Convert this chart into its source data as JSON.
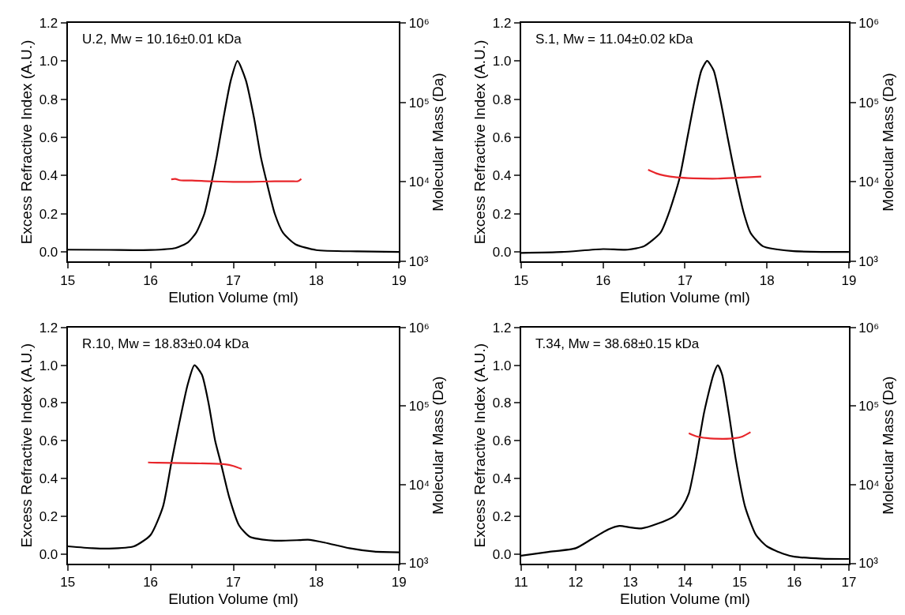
{
  "chart_data": [
    {
      "type": "line",
      "title": "U.2, Mw = 10.16±0.01 kDa",
      "xlabel": "Elution Volume (ml)",
      "ylabel": "Excess Refractive Index (A.U.)",
      "y2label": "Molecular Mass (Da)",
      "log": "y2",
      "xlim": [
        15,
        19
      ],
      "xticks": [
        15,
        16,
        17,
        18,
        19
      ],
      "ylim": [
        -0.05,
        1.2
      ],
      "yticks": [
        {
          "value": 0,
          "label": "0.0"
        },
        {
          "value": 0.2,
          "label": "0.2"
        },
        {
          "value": 0.4,
          "label": "0.4"
        },
        {
          "value": 0.6,
          "label": "0.6"
        },
        {
          "value": 0.8,
          "label": "0.8"
        },
        {
          "value": 1,
          "label": "1.0"
        },
        {
          "value": 1.2,
          "label": "1.2"
        }
      ],
      "y2lim": [
        1000,
        1000000
      ],
      "y2ticks": [
        {
          "value": 1000,
          "label": "10³"
        },
        {
          "value": 10000,
          "label": "10⁴"
        },
        {
          "value": 100000,
          "label": "10⁵"
        },
        {
          "value": 1000000,
          "label": "10⁶"
        }
      ],
      "series": [
        {
          "color": "#000000",
          "x": [
            15,
            15.5,
            16,
            16.3,
            16.45,
            16.55,
            16.65,
            16.73,
            16.8,
            16.88,
            16.97,
            17.05,
            17.15,
            17.25,
            17.33,
            17.4,
            17.5,
            17.6,
            17.75,
            18,
            18.5,
            19
          ],
          "values": [
            0.012,
            0.011,
            0.01,
            0.02,
            0.05,
            0.1,
            0.2,
            0.35,
            0.5,
            0.7,
            0.9,
            1.0,
            0.9,
            0.7,
            0.5,
            0.37,
            0.2,
            0.1,
            0.04,
            0.01,
            0.003,
            0.0
          ]
        },
        {
          "color": "#e8262b",
          "axis": "y2",
          "x": [
            16.25,
            16.3,
            16.35,
            16.4,
            16.5,
            16.7,
            17.0,
            17.2,
            17.5,
            17.7,
            17.78,
            17.82
          ],
          "values": [
            10800,
            10900,
            10500,
            10400,
            10400,
            10200,
            10000,
            10000,
            10200,
            10200,
            10200,
            10900
          ]
        }
      ]
    },
    {
      "type": "line",
      "title": "S.1, Mw = 11.04±0.02 kDa",
      "xlabel": "Elution Volume (ml)",
      "ylabel": "Excess Refractive Index (A.U.)",
      "y2label": "Molecular Mass (Da)",
      "log": "y2",
      "xlim": [
        15,
        19
      ],
      "xticks": [
        15,
        16,
        17,
        18,
        19
      ],
      "ylim": [
        -0.05,
        1.2
      ],
      "yticks": [
        {
          "value": 0,
          "label": "0.0"
        },
        {
          "value": 0.2,
          "label": "0.2"
        },
        {
          "value": 0.4,
          "label": "0.4"
        },
        {
          "value": 0.6,
          "label": "0.6"
        },
        {
          "value": 0.8,
          "label": "0.8"
        },
        {
          "value": 1,
          "label": "1.0"
        },
        {
          "value": 1.2,
          "label": "1.2"
        }
      ],
      "y2lim": [
        1000,
        1000000
      ],
      "y2ticks": [
        {
          "value": 1000,
          "label": "10³"
        },
        {
          "value": 10000,
          "label": "10⁴"
        },
        {
          "value": 100000,
          "label": "10⁵"
        },
        {
          "value": 1000000,
          "label": "10⁶"
        }
      ],
      "series": [
        {
          "color": "#000000",
          "x": [
            15,
            15.5,
            16,
            16.3,
            16.5,
            16.7,
            16.8,
            16.93,
            17.03,
            17.12,
            17.2,
            17.27,
            17.35,
            17.43,
            17.52,
            17.62,
            17.72,
            17.8,
            17.95,
            18.3,
            19
          ],
          "values": [
            -0.005,
            0.0,
            0.015,
            0.012,
            0.03,
            0.1,
            0.2,
            0.38,
            0.6,
            0.8,
            0.95,
            1.0,
            0.95,
            0.8,
            0.6,
            0.385,
            0.2,
            0.1,
            0.03,
            0.005,
            0.0
          ]
        },
        {
          "color": "#e8262b",
          "axis": "y2",
          "x": [
            16.55,
            16.65,
            16.75,
            16.9,
            17.1,
            17.4,
            17.6,
            17.8,
            17.93
          ],
          "values": [
            14200,
            12800,
            12000,
            11400,
            11100,
            11000,
            11200,
            11500,
            11700
          ]
        }
      ]
    },
    {
      "type": "line",
      "title": "R.10, Mw = 18.83±0.04 kDa",
      "xlabel": "Elution Volume (ml)",
      "ylabel": "Excess Refractive Index (A.U.)",
      "y2label": "Molecular Mass (Da)",
      "log": "y2",
      "xlim": [
        15,
        19
      ],
      "xticks": [
        15,
        16,
        17,
        18,
        19
      ],
      "ylim": [
        -0.05,
        1.2
      ],
      "yticks": [
        {
          "value": 0,
          "label": "0.0"
        },
        {
          "value": 0.2,
          "label": "0.2"
        },
        {
          "value": 0.4,
          "label": "0.4"
        },
        {
          "value": 0.6,
          "label": "0.6"
        },
        {
          "value": 0.8,
          "label": "0.8"
        },
        {
          "value": 1,
          "label": "1.0"
        },
        {
          "value": 1.2,
          "label": "1.2"
        }
      ],
      "y2lim": [
        1000,
        1000000
      ],
      "y2ticks": [
        {
          "value": 1000,
          "label": "10³"
        },
        {
          "value": 10000,
          "label": "10⁴"
        },
        {
          "value": 100000,
          "label": "10⁵"
        },
        {
          "value": 1000000,
          "label": "10⁶"
        }
      ],
      "series": [
        {
          "color": "#000000",
          "x": [
            15,
            15.3,
            15.5,
            15.8,
            16.0,
            16.15,
            16.25,
            16.35,
            16.45,
            16.53,
            16.62,
            16.7,
            16.78,
            16.85,
            16.95,
            17.07,
            17.2,
            17.5,
            17.8,
            17.9,
            18.1,
            18.4,
            18.7,
            19
          ],
          "values": [
            0.04,
            0.03,
            0.028,
            0.04,
            0.1,
            0.25,
            0.48,
            0.7,
            0.9,
            1.0,
            0.95,
            0.8,
            0.6,
            0.48,
            0.3,
            0.15,
            0.09,
            0.07,
            0.073,
            0.075,
            0.06,
            0.03,
            0.012,
            0.008
          ]
        },
        {
          "color": "#e8262b",
          "axis": "y2",
          "x": [
            15.97,
            16.1,
            16.4,
            16.7,
            16.9,
            17.0,
            17.1
          ],
          "values": [
            19200,
            19000,
            18800,
            18600,
            18200,
            17300,
            15850
          ]
        }
      ]
    },
    {
      "type": "line",
      "title": "T.34, Mw = 38.68±0.15 kDa",
      "xlabel": "Elution Volume (ml)",
      "ylabel": "Excess Refractive Index (A.U.)",
      "y2label": "Molecular Mass (Da)",
      "log": "y2",
      "xlim": [
        11,
        17
      ],
      "xticks": [
        11,
        12,
        13,
        14,
        15,
        16,
        17
      ],
      "ylim": [
        -0.05,
        1.2
      ],
      "yticks": [
        {
          "value": 0,
          "label": "0.0"
        },
        {
          "value": 0.2,
          "label": "0.2"
        },
        {
          "value": 0.4,
          "label": "0.4"
        },
        {
          "value": 0.6,
          "label": "0.6"
        },
        {
          "value": 0.8,
          "label": "0.8"
        },
        {
          "value": 1,
          "label": "1.0"
        },
        {
          "value": 1.2,
          "label": "1.2"
        }
      ],
      "y2lim": [
        1000,
        1000000
      ],
      "y2ticks": [
        {
          "value": 1000,
          "label": "10³"
        },
        {
          "value": 10000,
          "label": "10⁴"
        },
        {
          "value": 100000,
          "label": "10⁵"
        },
        {
          "value": 1000000,
          "label": "10⁶"
        }
      ],
      "series": [
        {
          "color": "#000000",
          "x": [
            11,
            11.5,
            12,
            12.3,
            12.6,
            12.8,
            13.0,
            13.2,
            13.5,
            13.8,
            13.95,
            14.07,
            14.2,
            14.35,
            14.52,
            14.6,
            14.68,
            14.8,
            14.93,
            15.1,
            15.3,
            15.5,
            15.8,
            16,
            16.5,
            17
          ],
          "values": [
            -0.01,
            0.01,
            0.03,
            0.08,
            0.13,
            0.148,
            0.14,
            0.135,
            0.16,
            0.2,
            0.25,
            0.32,
            0.5,
            0.75,
            0.95,
            1.0,
            0.95,
            0.75,
            0.5,
            0.25,
            0.1,
            0.04,
            0.0,
            -0.015,
            -0.025,
            -0.027
          ]
        },
        {
          "color": "#e8262b",
          "axis": "y2",
          "x": [
            14.07,
            14.2,
            14.4,
            14.7,
            14.9,
            15.05,
            15.2
          ],
          "values": [
            45300,
            41500,
            39200,
            38400,
            39000,
            41000,
            46600
          ]
        }
      ]
    }
  ]
}
